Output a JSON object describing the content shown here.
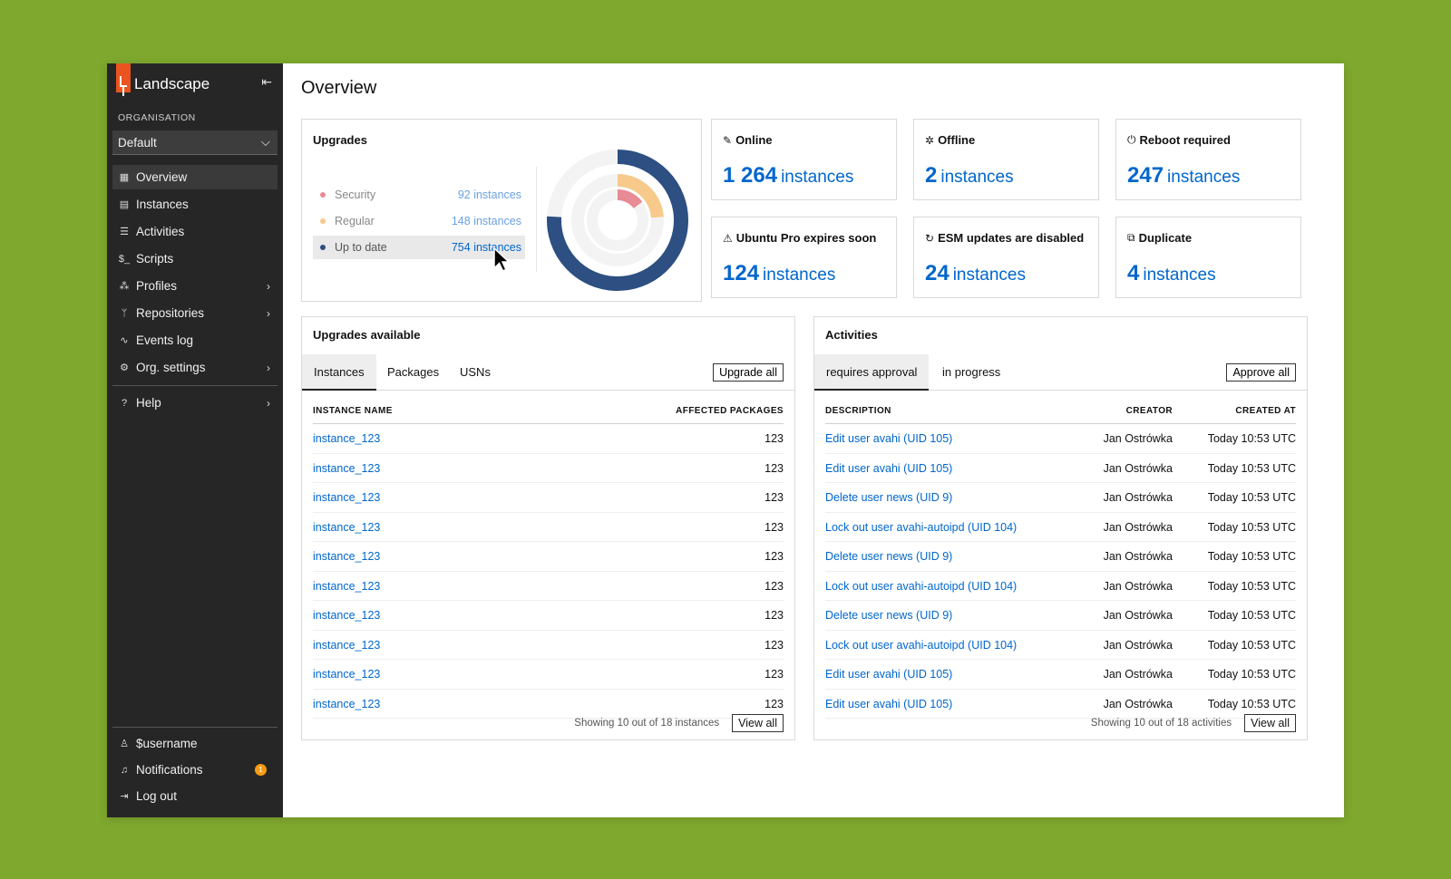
{
  "sidebar": {
    "brand": "Landscape",
    "org_label": "ORGANISATION",
    "org_value": "Default",
    "items": [
      {
        "label": "Overview",
        "icon": "grid-icon"
      },
      {
        "label": "Instances",
        "icon": "server-icon"
      },
      {
        "label": "Activities",
        "icon": "list-icon"
      },
      {
        "label": "Scripts",
        "icon": "terminal-icon"
      },
      {
        "label": "Profiles",
        "icon": "profiles-icon"
      },
      {
        "label": "Repositories",
        "icon": "branch-icon"
      },
      {
        "label": "Events log",
        "icon": "pulse-icon"
      },
      {
        "label": "Org. settings",
        "icon": "gear-icon"
      },
      {
        "label": "Help",
        "icon": "help-icon"
      }
    ],
    "bottom": [
      {
        "label": "$username",
        "icon": "user-icon"
      },
      {
        "label": "Notifications",
        "icon": "bell-icon",
        "badge": "1"
      },
      {
        "label": "Log out",
        "icon": "logout-icon"
      }
    ]
  },
  "page": {
    "title": "Overview"
  },
  "upgrades": {
    "title": "Upgrades",
    "legend": [
      {
        "label": "Security",
        "value": "92 instances",
        "color": "#e88b94",
        "count": 92
      },
      {
        "label": "Regular",
        "value": "148 instances",
        "color": "#f7c98b",
        "count": 148
      },
      {
        "label": "Up to date",
        "value": "754 instances",
        "color": "#2d4f82",
        "count": 754
      }
    ]
  },
  "stats": [
    {
      "title": "Online",
      "icon": "plug-icon",
      "number": "1 264",
      "unit": "instances"
    },
    {
      "title": "Offline",
      "icon": "plug-off-icon",
      "number": "2",
      "unit": "instances"
    },
    {
      "title": "Reboot required",
      "icon": "power-icon",
      "number": "247",
      "unit": "instances"
    },
    {
      "title": "Ubuntu Pro expires soon",
      "icon": "warning-icon",
      "number": "124",
      "unit": "instances"
    },
    {
      "title": "ESM updates are disabled",
      "icon": "refresh-icon",
      "number": "24",
      "unit": "instances"
    },
    {
      "title": "Duplicate",
      "icon": "copy-icon",
      "number": "4",
      "unit": "instances"
    }
  ],
  "upgrades_available": {
    "title": "Upgrades available",
    "tabs": [
      "Instances",
      "Packages",
      "USNs"
    ],
    "action": "Upgrade all",
    "columns": [
      "INSTANCE NAME",
      "AFFECTED PACKAGES"
    ],
    "rows": [
      [
        "instance_123",
        "123"
      ],
      [
        "instance_123",
        "123"
      ],
      [
        "instance_123",
        "123"
      ],
      [
        "instance_123",
        "123"
      ],
      [
        "instance_123",
        "123"
      ],
      [
        "instance_123",
        "123"
      ],
      [
        "instance_123",
        "123"
      ],
      [
        "instance_123",
        "123"
      ],
      [
        "instance_123",
        "123"
      ],
      [
        "instance_123",
        "123"
      ]
    ],
    "footer": "Showing 10 out of 18 instances",
    "view_all": "View all"
  },
  "activities": {
    "title": "Activities",
    "tabs": [
      "requires approval",
      "in progress"
    ],
    "action": "Approve all",
    "columns": [
      "DESCRIPTION",
      "CREATOR",
      "CREATED AT"
    ],
    "rows": [
      [
        "Edit user avahi (UID 105)",
        "Jan Ostrówka",
        "Today 10:53 UTC"
      ],
      [
        "Edit user avahi (UID 105)",
        "Jan Ostrówka",
        "Today 10:53 UTC"
      ],
      [
        "Delete user news (UID 9)",
        "Jan Ostrówka",
        "Today 10:53 UTC"
      ],
      [
        "Lock out user avahi-autoipd (UID 104)",
        "Jan Ostrówka",
        "Today 10:53 UTC"
      ],
      [
        "Delete user news (UID 9)",
        "Jan Ostrówka",
        "Today 10:53 UTC"
      ],
      [
        "Lock out user avahi-autoipd (UID 104)",
        "Jan Ostrówka",
        "Today 10:53 UTC"
      ],
      [
        "Delete user news (UID 9)",
        "Jan Ostrówka",
        "Today 10:53 UTC"
      ],
      [
        "Lock out user avahi-autoipd (UID 104)",
        "Jan Ostrówka",
        "Today 10:53 UTC"
      ],
      [
        "Edit user avahi (UID 105)",
        "Jan Ostrówka",
        "Today 10:53 UTC"
      ],
      [
        "Edit user avahi (UID 105)",
        "Jan Ostrówka",
        "Today 10:53 UTC"
      ]
    ],
    "footer": "Showing 10 out of 18 activities",
    "view_all": "View all"
  }
}
